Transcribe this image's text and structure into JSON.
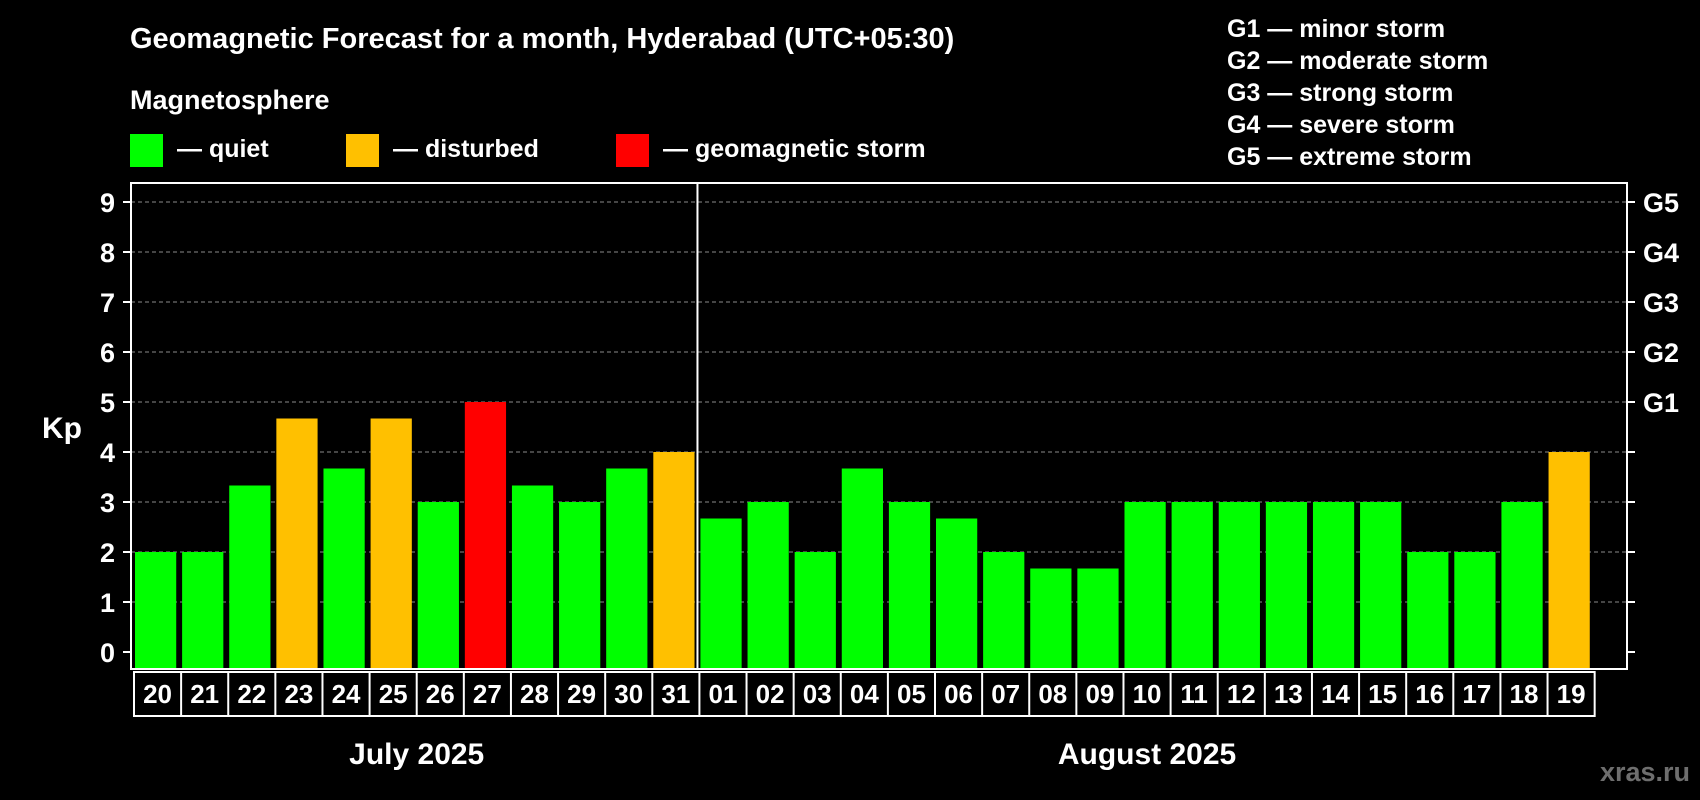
{
  "chart_data": {
    "type": "bar",
    "title": "Geomagnetic Forecast for a month, Hyderabad (UTC+05:30)",
    "subtitle": "Magnetosphere",
    "ylabel": "Kp",
    "ylim": [
      0,
      9
    ],
    "yticks": [
      0,
      1,
      2,
      3,
      4,
      5,
      6,
      7,
      8,
      9
    ],
    "grid": "dashed horizontal",
    "legend": [
      {
        "key": "quiet",
        "label": "— quiet",
        "color": "#00ff00"
      },
      {
        "key": "disturbed",
        "label": "— disturbed",
        "color": "#ffc000"
      },
      {
        "key": "storm",
        "label": "— geomagnetic storm",
        "color": "#ff0000"
      }
    ],
    "g_scale_legend": [
      "G1 — minor storm",
      "G2 — moderate storm",
      "G3 — strong storm",
      "G4 — severe storm",
      "G5 — extreme storm"
    ],
    "right_axis_labels": [
      {
        "kp": 5,
        "label": "G1"
      },
      {
        "kp": 6,
        "label": "G2"
      },
      {
        "kp": 7,
        "label": "G3"
      },
      {
        "kp": 8,
        "label": "G4"
      },
      {
        "kp": 9,
        "label": "G5"
      }
    ],
    "categories": [
      "20",
      "21",
      "22",
      "23",
      "24",
      "25",
      "26",
      "27",
      "28",
      "29",
      "30",
      "31",
      "01",
      "02",
      "03",
      "04",
      "05",
      "06",
      "07",
      "08",
      "09",
      "10",
      "11",
      "12",
      "13",
      "14",
      "15",
      "16",
      "17",
      "18",
      "19"
    ],
    "values": [
      2,
      2,
      3.33,
      4.67,
      3.67,
      4.67,
      3,
      5,
      3.33,
      3,
      3.67,
      4,
      2.67,
      3,
      2,
      3.67,
      3,
      2.67,
      2,
      1.67,
      1.67,
      3,
      3,
      3,
      3,
      3,
      3,
      2,
      2,
      3,
      4
    ],
    "status": [
      "quiet",
      "quiet",
      "quiet",
      "disturbed",
      "quiet",
      "disturbed",
      "quiet",
      "storm",
      "quiet",
      "quiet",
      "quiet",
      "disturbed",
      "quiet",
      "quiet",
      "quiet",
      "quiet",
      "quiet",
      "quiet",
      "quiet",
      "quiet",
      "quiet",
      "quiet",
      "quiet",
      "quiet",
      "quiet",
      "quiet",
      "quiet",
      "quiet",
      "quiet",
      "quiet",
      "disturbed"
    ],
    "months": [
      {
        "label": "July 2025",
        "days": 12
      },
      {
        "label": "August 2025",
        "days": 19
      }
    ],
    "watermark": "xras.ru"
  }
}
